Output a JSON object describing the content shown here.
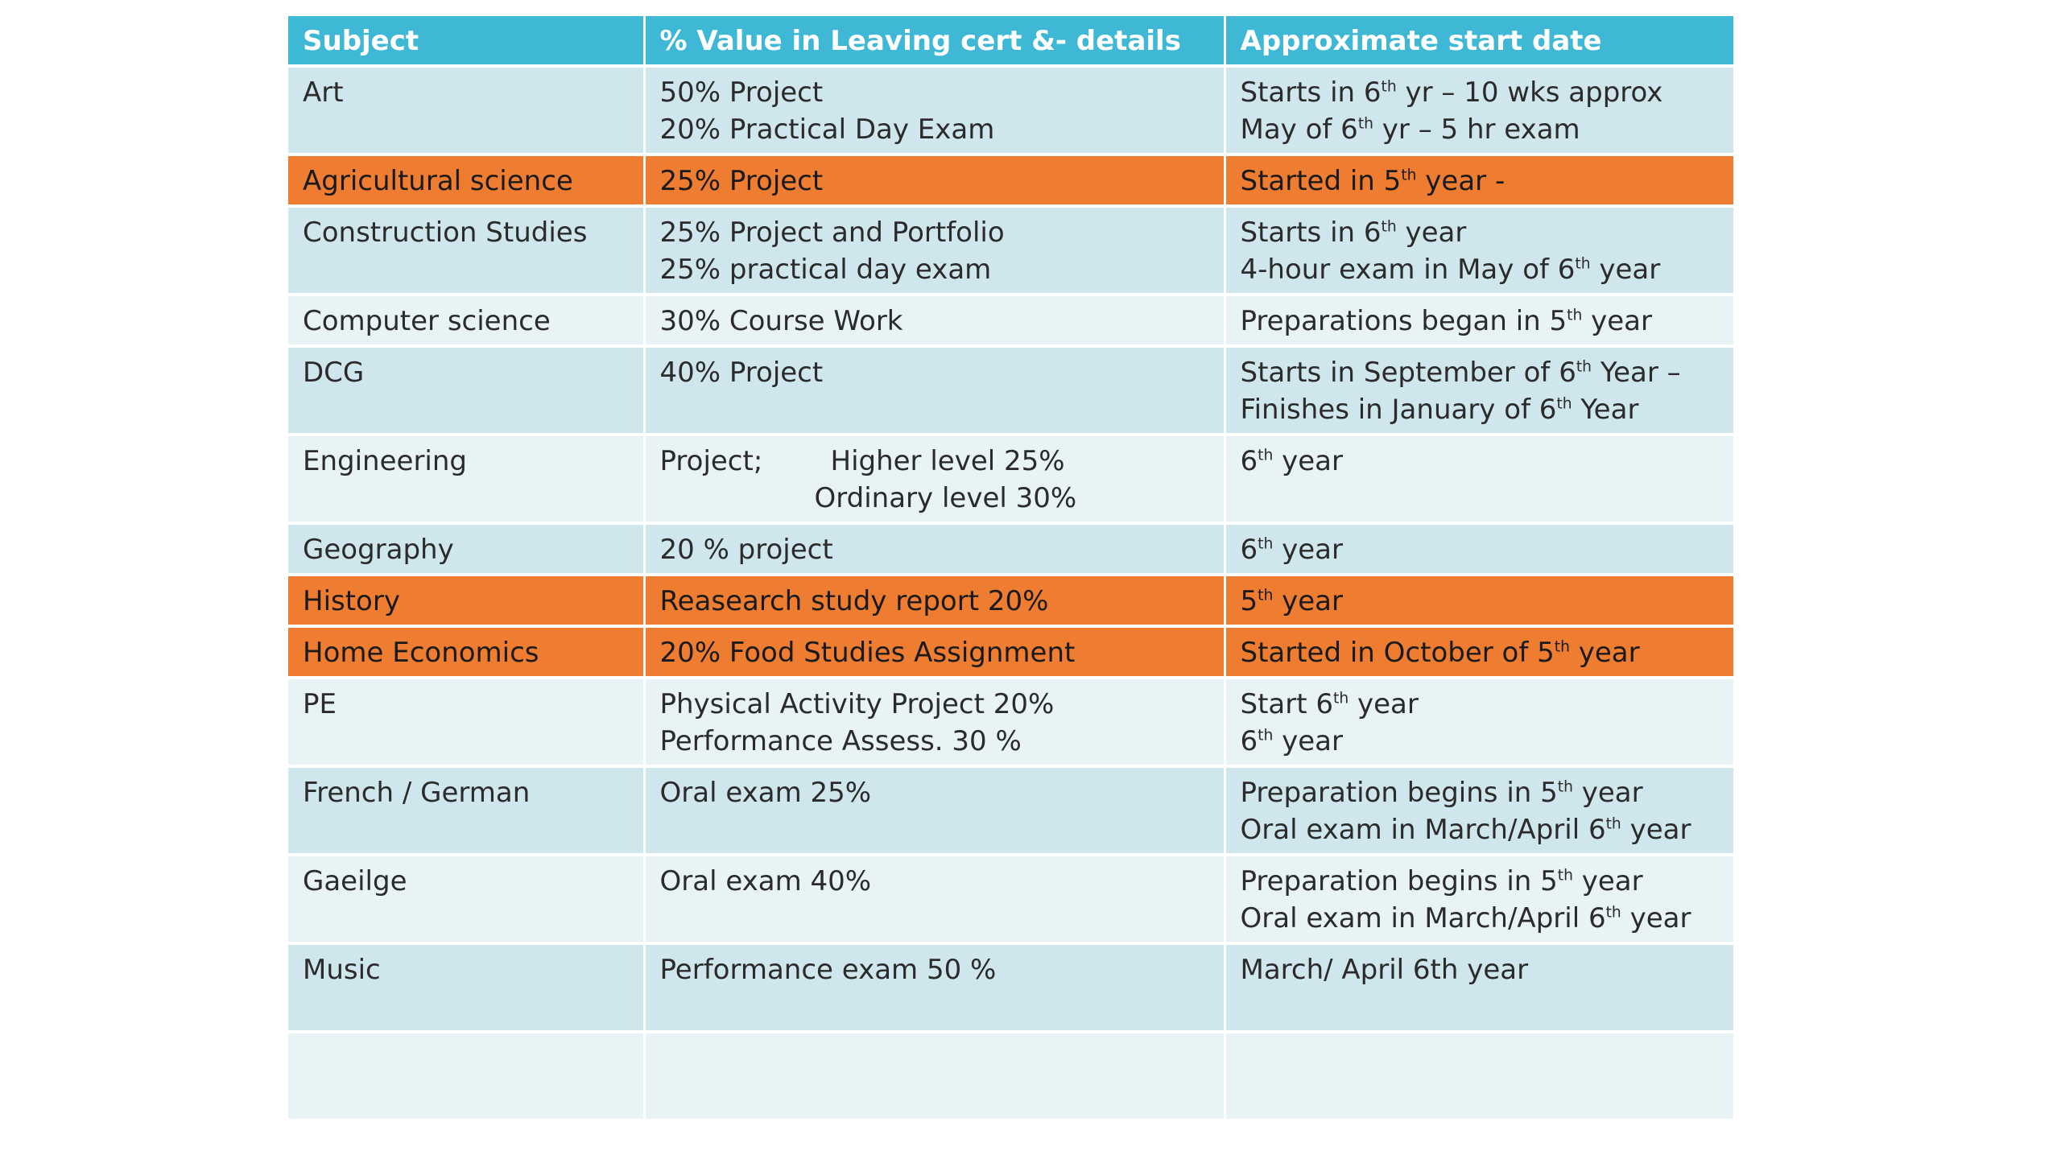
{
  "table": {
    "headers": [
      "Subject",
      "% Value in Leaving cert &- details",
      "Approximate start date"
    ],
    "header_color": "#3fb8d5",
    "highlight_color": "#ee7d31",
    "rows": {
      "art": {
        "subject": "Art",
        "details": [
          "50% Project",
          "20% Practical Day Exam"
        ],
        "start": [
          {
            "pre": "Starts in 6",
            "sup": "th",
            "post": " yr – 10 wks approx"
          },
          {
            "pre": "May of 6",
            "sup": "th",
            "post": " yr – 5 hr exam"
          }
        ]
      },
      "agri": {
        "subject": "Agricultural science",
        "details": [
          "25% Project"
        ],
        "start": [
          {
            "pre": "Started in 5",
            "sup": "th",
            "post": " year -"
          }
        ]
      },
      "construction": {
        "subject": "Construction Studies",
        "details": [
          "25% Project and Portfolio",
          "25% practical day exam"
        ],
        "start": [
          {
            "pre": "Starts in 6",
            "sup": "th",
            "post": " year"
          },
          {
            "pre": "4-hour exam in May of 6",
            "sup": "th",
            "post": " year"
          }
        ]
      },
      "computer": {
        "subject": "Computer science",
        "details": [
          "30% Course Work"
        ],
        "start": [
          {
            "pre": "Preparations began in 5",
            "sup": "th",
            "post": " year"
          }
        ]
      },
      "dcg": {
        "subject": "DCG",
        "details": [
          "40% Project"
        ],
        "start": [
          {
            "pre": "Starts in September of 6",
            "sup": "th",
            "post": " Year –"
          },
          {
            "pre": "Finishes in January of 6",
            "sup": "th",
            "post": " Year"
          }
        ]
      },
      "engineering": {
        "subject": "Engineering",
        "details_label": "Project;",
        "details_l1": "Higher level 25%",
        "details_l2": "Ordinary level  30%",
        "start": [
          {
            "pre": "6",
            "sup": "th",
            "post": " year"
          }
        ]
      },
      "geography": {
        "subject": "Geography",
        "details": [
          "20 % project"
        ],
        "start": [
          {
            "pre": "6",
            "sup": "th",
            "post": " year"
          }
        ]
      },
      "history": {
        "subject": "History",
        "details": [
          "Reasearch study report 20%"
        ],
        "start": [
          {
            "pre": "5",
            "sup": "th",
            "post": " year"
          }
        ]
      },
      "home_ec": {
        "subject": "Home Economics",
        "details": [
          "20% Food Studies Assignment"
        ],
        "start": [
          {
            "pre": "Started in October of 5",
            "sup": "th",
            "post": " year"
          }
        ]
      },
      "pe": {
        "subject": "PE",
        "details": [
          "Physical Activity Project 20%",
          "Performance Assess. 30 %"
        ],
        "start": [
          {
            "pre": "Start 6",
            "sup": "th",
            "post": " year"
          },
          {
            "pre": "6",
            "sup": "th",
            "post": " year"
          }
        ]
      },
      "french_german": {
        "subject": "French / German",
        "details": [
          "Oral exam 25%"
        ],
        "start": [
          {
            "pre": "Preparation begins in 5",
            "sup": "th",
            "post": " year"
          },
          {
            "pre": "Oral exam in March/April 6",
            "sup": "th",
            "post": " year"
          }
        ]
      },
      "gaeilge": {
        "subject": "Gaeilge",
        "details": [
          "Oral exam 40%"
        ],
        "start": [
          {
            "pre": "Preparation begins in 5",
            "sup": "th",
            "post": " year"
          },
          {
            "pre": "Oral exam in March/April 6",
            "sup": "th",
            "post": " year"
          }
        ]
      },
      "music": {
        "subject": "Music",
        "details": [
          "Performance exam 50 %"
        ],
        "start": [
          {
            "pre": "March/ April  6th year",
            "sup": "",
            "post": ""
          }
        ]
      }
    }
  }
}
